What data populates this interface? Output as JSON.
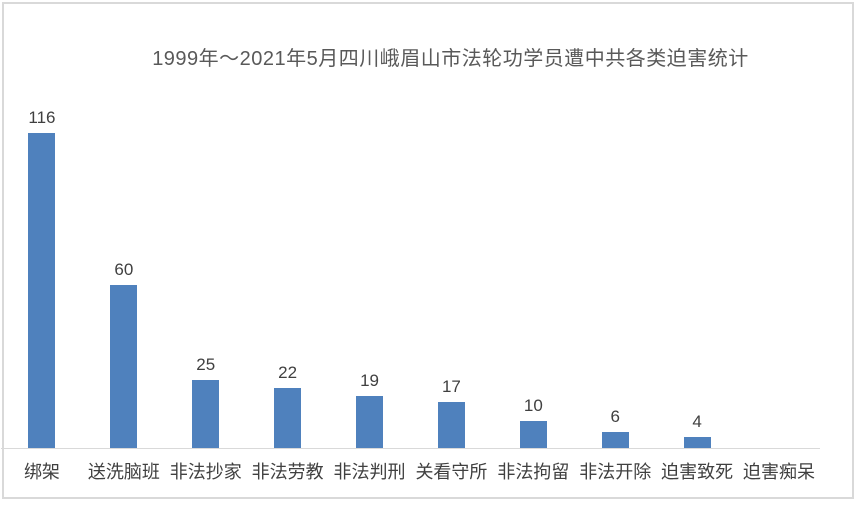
{
  "chart_data": {
    "type": "bar",
    "title": "1999年～2021年5月四川峨眉山市法轮功学员遭中共各类迫害统计",
    "categories": [
      "绑架",
      "送洗脑班",
      "非法抄家",
      "非法劳教",
      "非法判刑",
      "关看守所",
      "非法拘留",
      "非法开除",
      "迫害致死",
      "迫害痴呆"
    ],
    "values": [
      116,
      60,
      25,
      22,
      19,
      17,
      10,
      6,
      4,
      0
    ],
    "data_labels": [
      "116",
      "60",
      "25",
      "22",
      "19",
      "17",
      "10",
      "6",
      "4",
      ""
    ],
    "xlabel": "",
    "ylabel": "",
    "ylim": [
      0,
      120
    ],
    "grid": false,
    "legend": false,
    "colors": {
      "bar_fill": "#4F81BD",
      "title_text": "#595959",
      "label_text": "#404040",
      "axis_line": "#d9d9d9",
      "frame_border": "#d9d9d9",
      "background": "#ffffff"
    }
  }
}
